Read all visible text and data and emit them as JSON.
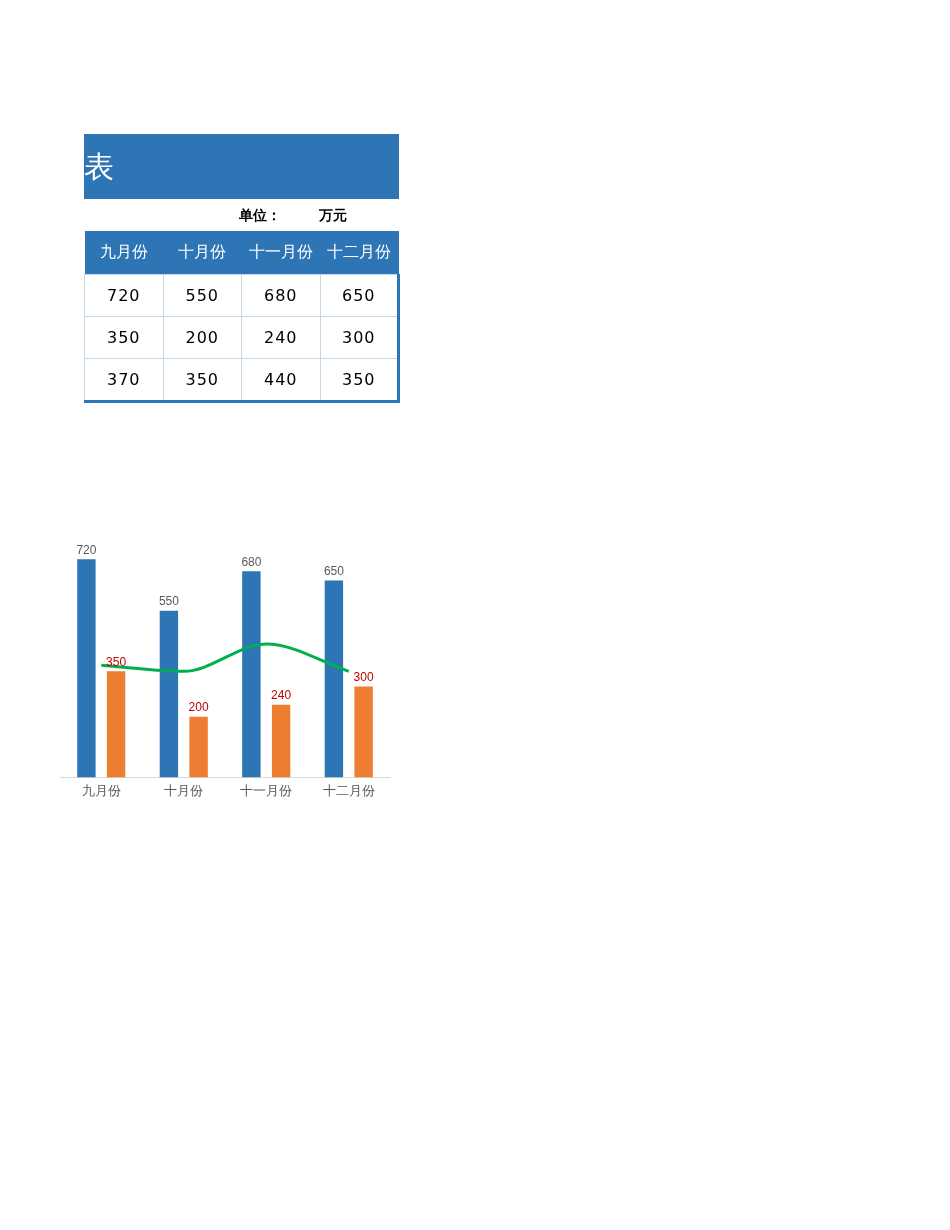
{
  "chart_data": {
    "type": "bar",
    "title": "表",
    "annotations": [
      "单位：",
      "万元",
      "720",
      "550",
      "680",
      "650",
      "350",
      "200",
      "240",
      "300"
    ],
    "categories": [
      "九月份",
      "十月份",
      "十一月份",
      "十二月份"
    ],
    "series": [
      {
        "type": "bar",
        "color": "#2e75b6",
        "values": [
          720,
          550,
          680,
          650
        ]
      },
      {
        "type": "bar",
        "color": "#ed7d31",
        "values": [
          350,
          200,
          240,
          300
        ]
      },
      {
        "type": "line",
        "color": "#00b050",
        "values": [
          370,
          350,
          440,
          350
        ],
        "marker": "none"
      }
    ],
    "data_labels": true,
    "grid": false,
    "legend": false,
    "tick_labels": "x"
  }
}
